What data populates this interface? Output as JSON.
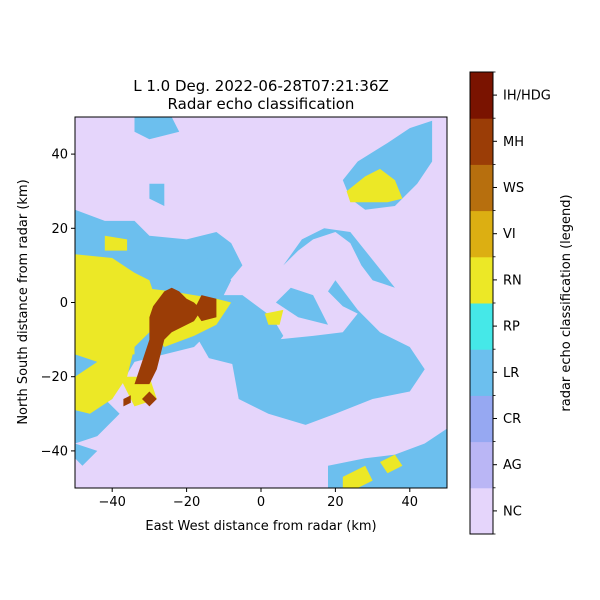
{
  "chart_data": {
    "type": "heatmap",
    "title_line1": "L 1.0 Deg. 2022-06-28T07:21:36Z",
    "title_line2": "Radar echo classification",
    "xlabel": "East West distance from radar (km)",
    "ylabel": "North South distance from radar (km)",
    "xlim": [
      -50,
      50
    ],
    "ylim": [
      -50,
      50
    ],
    "xticks": [
      -40,
      -20,
      0,
      20,
      40
    ],
    "yticks": [
      -40,
      -20,
      0,
      20,
      40
    ],
    "xtick_labels": [
      "−40",
      "−20",
      "0",
      "20",
      "40"
    ],
    "ytick_labels": [
      "−40",
      "−20",
      "0",
      "20",
      "40"
    ],
    "colorbar": {
      "label": "radar echo classification (legend)",
      "classes": [
        {
          "code": "NC",
          "color": "#e5d5fb"
        },
        {
          "code": "AG",
          "color": "#bab6f5"
        },
        {
          "code": "CR",
          "color": "#96a8f2"
        },
        {
          "code": "LR",
          "color": "#6cbfee"
        },
        {
          "code": "RP",
          "color": "#45e8e8"
        },
        {
          "code": "RN",
          "color": "#ece826"
        },
        {
          "code": "VI",
          "color": "#dcaf12"
        },
        {
          "code": "WS",
          "color": "#b76f0e"
        },
        {
          "code": "MH",
          "color": "#9b3d06"
        },
        {
          "code": "IH/HDG",
          "color": "#7a1300"
        }
      ]
    },
    "regions": [
      {
        "class": "LR",
        "shape": "poly",
        "pts": [
          [
            -50,
            25
          ],
          [
            -42,
            22
          ],
          [
            -34,
            22
          ],
          [
            -30,
            18
          ],
          [
            -20,
            17
          ],
          [
            -12,
            19
          ],
          [
            -8,
            16
          ],
          [
            -5,
            10
          ],
          [
            -10,
            4
          ],
          [
            -16,
            1
          ],
          [
            -12,
            -6
          ],
          [
            -18,
            -12
          ],
          [
            -26,
            -14
          ],
          [
            -34,
            -16
          ],
          [
            -40,
            -26
          ],
          [
            -50,
            -32
          ]
        ]
      },
      {
        "class": "LR",
        "shape": "poly",
        "pts": [
          [
            -20,
            2
          ],
          [
            -5,
            2
          ],
          [
            3,
            -4
          ],
          [
            6,
            -9
          ],
          [
            2,
            -14
          ],
          [
            -6,
            -17
          ],
          [
            -14,
            -15
          ],
          [
            -18,
            -8
          ]
        ]
      },
      {
        "class": "LR",
        "shape": "poly",
        "pts": [
          [
            -8,
            -15
          ],
          [
            4,
            -10
          ],
          [
            14,
            -9
          ],
          [
            22,
            -8
          ],
          [
            26,
            -3
          ],
          [
            22,
            -1
          ],
          [
            18,
            3
          ],
          [
            20,
            6
          ],
          [
            26,
            -2
          ],
          [
            32,
            -8
          ],
          [
            40,
            -12
          ],
          [
            44,
            -18
          ],
          [
            40,
            -24
          ],
          [
            30,
            -26
          ],
          [
            20,
            -30
          ],
          [
            12,
            -33
          ],
          [
            2,
            -30
          ],
          [
            -6,
            -26
          ]
        ]
      },
      {
        "class": "LR",
        "shape": "poly",
        "pts": [
          [
            6,
            10
          ],
          [
            10,
            14
          ],
          [
            14,
            17
          ],
          [
            20,
            19
          ],
          [
            24,
            16
          ],
          [
            27,
            10
          ],
          [
            30,
            6
          ],
          [
            36,
            4
          ],
          [
            32,
            9
          ],
          [
            28,
            14
          ],
          [
            24,
            19
          ],
          [
            17,
            20
          ],
          [
            11,
            17
          ]
        ]
      },
      {
        "class": "LR",
        "shape": "poly",
        "pts": [
          [
            4,
            0
          ],
          [
            10,
            -4
          ],
          [
            18,
            -6
          ],
          [
            14,
            2
          ],
          [
            8,
            4
          ]
        ]
      },
      {
        "class": "LR",
        "shape": "poly",
        "pts": [
          [
            -24,
            9
          ],
          [
            -14,
            12
          ],
          [
            -8,
            6
          ],
          [
            -12,
            -2
          ],
          [
            -22,
            -4
          ]
        ]
      },
      {
        "class": "LR",
        "shape": "poly",
        "pts": [
          [
            -50,
            -28
          ],
          [
            -42,
            -26
          ],
          [
            -38,
            -30
          ],
          [
            -44,
            -36
          ],
          [
            -50,
            -38
          ]
        ]
      },
      {
        "class": "LR",
        "shape": "poly",
        "pts": [
          [
            -50,
            -38
          ],
          [
            -44,
            -40
          ],
          [
            -48,
            -44
          ],
          [
            -50,
            -42
          ]
        ]
      },
      {
        "class": "LR",
        "shape": "poly",
        "pts": [
          [
            -34,
            50
          ],
          [
            -24,
            50
          ],
          [
            -22,
            46
          ],
          [
            -30,
            44
          ],
          [
            -34,
            46
          ]
        ]
      },
      {
        "class": "LR",
        "shape": "poly",
        "pts": [
          [
            -30,
            32
          ],
          [
            -26,
            32
          ],
          [
            -26,
            26
          ],
          [
            -30,
            28
          ]
        ]
      },
      {
        "class": "LR",
        "shape": "poly",
        "pts": [
          [
            22,
            33
          ],
          [
            26,
            38
          ],
          [
            34,
            43
          ],
          [
            40,
            47
          ],
          [
            46,
            49
          ],
          [
            46,
            38
          ],
          [
            42,
            32
          ],
          [
            36,
            26
          ],
          [
            28,
            25
          ],
          [
            24,
            28
          ]
        ]
      },
      {
        "class": "LR",
        "shape": "poly",
        "pts": [
          [
            18,
            -44
          ],
          [
            28,
            -42
          ],
          [
            36,
            -41
          ],
          [
            44,
            -38
          ],
          [
            50,
            -34
          ],
          [
            50,
            -50
          ],
          [
            18,
            -50
          ]
        ]
      },
      {
        "class": "RN",
        "shape": "poly",
        "pts": [
          [
            -50,
            13
          ],
          [
            -40,
            12
          ],
          [
            -34,
            8
          ],
          [
            -30,
            6
          ],
          [
            -28,
            0
          ],
          [
            -26,
            -4
          ],
          [
            -30,
            -8
          ],
          [
            -34,
            -12
          ],
          [
            -36,
            -20
          ],
          [
            -40,
            -26
          ],
          [
            -46,
            -30
          ],
          [
            -50,
            -29
          ],
          [
            -50,
            -20
          ],
          [
            -44,
            -16
          ],
          [
            -50,
            -14
          ]
        ]
      },
      {
        "class": "RN",
        "shape": "poly",
        "pts": [
          [
            -32,
            4
          ],
          [
            -24,
            3
          ],
          [
            -18,
            2
          ],
          [
            -12,
            1
          ],
          [
            -8,
            0
          ],
          [
            -12,
            -6
          ],
          [
            -18,
            -9
          ],
          [
            -26,
            -12
          ],
          [
            -30,
            -6
          ]
        ]
      },
      {
        "class": "RN",
        "shape": "poly",
        "pts": [
          [
            -50,
            -2
          ],
          [
            -40,
            -4
          ],
          [
            -34,
            -8
          ],
          [
            -34,
            -14
          ],
          [
            -44,
            -14
          ],
          [
            -50,
            -12
          ]
        ]
      },
      {
        "class": "RN",
        "shape": "poly",
        "pts": [
          [
            -38,
            -20
          ],
          [
            -30,
            -20
          ],
          [
            -28,
            -26
          ],
          [
            -34,
            -28
          ]
        ]
      },
      {
        "class": "RN",
        "shape": "poly",
        "pts": [
          [
            -42,
            18
          ],
          [
            -36,
            17
          ],
          [
            -36,
            14
          ],
          [
            -42,
            14
          ]
        ]
      },
      {
        "class": "RN",
        "shape": "poly",
        "pts": [
          [
            23,
            30
          ],
          [
            28,
            34
          ],
          [
            32,
            36
          ],
          [
            36,
            33
          ],
          [
            38,
            28
          ],
          [
            34,
            27
          ],
          [
            28,
            27
          ],
          [
            24,
            27
          ]
        ]
      },
      {
        "class": "RN",
        "shape": "poly",
        "pts": [
          [
            22,
            -47
          ],
          [
            28,
            -44
          ],
          [
            30,
            -48
          ],
          [
            26,
            -50
          ],
          [
            22,
            -50
          ]
        ]
      },
      {
        "class": "RN",
        "shape": "poly",
        "pts": [
          [
            32,
            -43
          ],
          [
            36,
            -41
          ],
          [
            38,
            -44
          ],
          [
            34,
            -46
          ]
        ]
      },
      {
        "class": "RN",
        "shape": "poly",
        "pts": [
          [
            1,
            -3
          ],
          [
            6,
            -2
          ],
          [
            5,
            -6
          ],
          [
            2,
            -6
          ]
        ]
      },
      {
        "class": "MH",
        "shape": "poly",
        "pts": [
          [
            -29,
            -1
          ],
          [
            -26,
            3
          ],
          [
            -24,
            4
          ],
          [
            -22,
            3
          ],
          [
            -20,
            1
          ],
          [
            -18,
            0
          ],
          [
            -16,
            -2
          ],
          [
            -18,
            -5
          ],
          [
            -24,
            -8
          ],
          [
            -26,
            -10
          ],
          [
            -28,
            -18
          ],
          [
            -30,
            -22
          ],
          [
            -34,
            -22
          ],
          [
            -32,
            -16
          ],
          [
            -30,
            -10
          ],
          [
            -30,
            -4
          ]
        ]
      },
      {
        "class": "MH",
        "shape": "poly",
        "pts": [
          [
            -16,
            2
          ],
          [
            -12,
            1
          ],
          [
            -12,
            -4
          ],
          [
            -16,
            -5
          ],
          [
            -18,
            -2
          ]
        ]
      },
      {
        "class": "MH",
        "shape": "poly",
        "pts": [
          [
            -30,
            -24
          ],
          [
            -28,
            -26
          ],
          [
            -30,
            -28
          ],
          [
            -32,
            -26
          ]
        ]
      },
      {
        "class": "MH",
        "shape": "poly",
        "pts": [
          [
            -37,
            -26
          ],
          [
            -35,
            -25
          ],
          [
            -35,
            -27
          ],
          [
            -37,
            -28
          ]
        ]
      }
    ]
  }
}
